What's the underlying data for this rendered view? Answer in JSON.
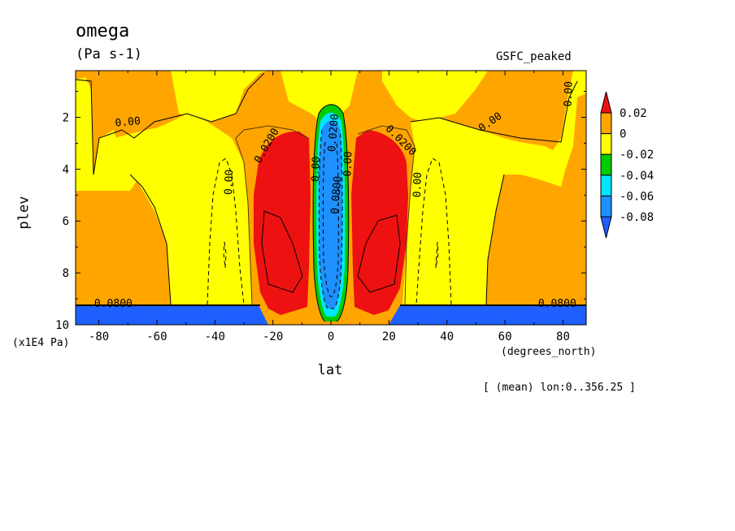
{
  "title": "omega",
  "units": "(Pa s-1)",
  "dataset": "GSFC_peaked",
  "footnote": "[ (mean) lon:0..356.25 ]",
  "chart_data": {
    "type": "contour",
    "title": "omega",
    "units": "(Pa s-1)",
    "xlabel": "lat",
    "xunits": "(degrees_north)",
    "ylabel": "plev",
    "yunits": "(x1E4 Pa)",
    "xlim": [
      -88,
      88
    ],
    "ylim": [
      10,
      0.2
    ],
    "xticks": [
      -80,
      -60,
      -40,
      -20,
      0,
      20,
      40,
      60,
      80
    ],
    "yticks": [
      2,
      4,
      6,
      8,
      10
    ],
    "colorbar": {
      "levels": [
        "0.02",
        "0",
        "-0.02",
        "-0.04",
        "-0.06",
        "-0.08"
      ],
      "colors": {
        "above_0.02": "#ee1111",
        "0_to_0.02": "#ffa500",
        "-0.02_to_0": "#ffff00",
        "-0.04_to_-0.02": "#00cc00",
        "-0.06_to_-0.04": "#00e5ff",
        "-0.08_to_-0.06": "#1e90ff",
        "below_-0.08": "#1e60ff"
      }
    },
    "contour_labels": [
      {
        "text": "0.00",
        "lat": -70,
        "plev": 2.2,
        "angle": -5
      },
      {
        "text": "0.0200",
        "lat": -22,
        "plev": 3.1,
        "angle": -60
      },
      {
        "text": "0.00",
        "lat": -35,
        "plev": 4.5,
        "angle": -88
      },
      {
        "text": "0.00",
        "lat": -5,
        "plev": 4.0,
        "angle": -88
      },
      {
        "text": "0.0200",
        "lat": 1,
        "plev": 2.6,
        "angle": -85
      },
      {
        "text": "0.0800",
        "lat": 2,
        "plev": 5.0,
        "angle": -85
      },
      {
        "text": "0.00",
        "lat": 6,
        "plev": 3.8,
        "angle": -88
      },
      {
        "text": "0.0200",
        "lat": 24,
        "plev": 2.9,
        "angle": 45
      },
      {
        "text": "0.00",
        "lat": 30,
        "plev": 4.6,
        "angle": -88
      },
      {
        "text": "0.00",
        "lat": 55,
        "plev": 2.2,
        "angle": -35
      },
      {
        "text": "0.00",
        "lat": 82,
        "plev": 1.1,
        "angle": -88
      },
      {
        "text": "0.0800",
        "lat": -75,
        "plev": 9.2,
        "angle": 0
      },
      {
        "text": "0.0800",
        "lat": 78,
        "plev": 9.2,
        "angle": 0
      }
    ]
  }
}
